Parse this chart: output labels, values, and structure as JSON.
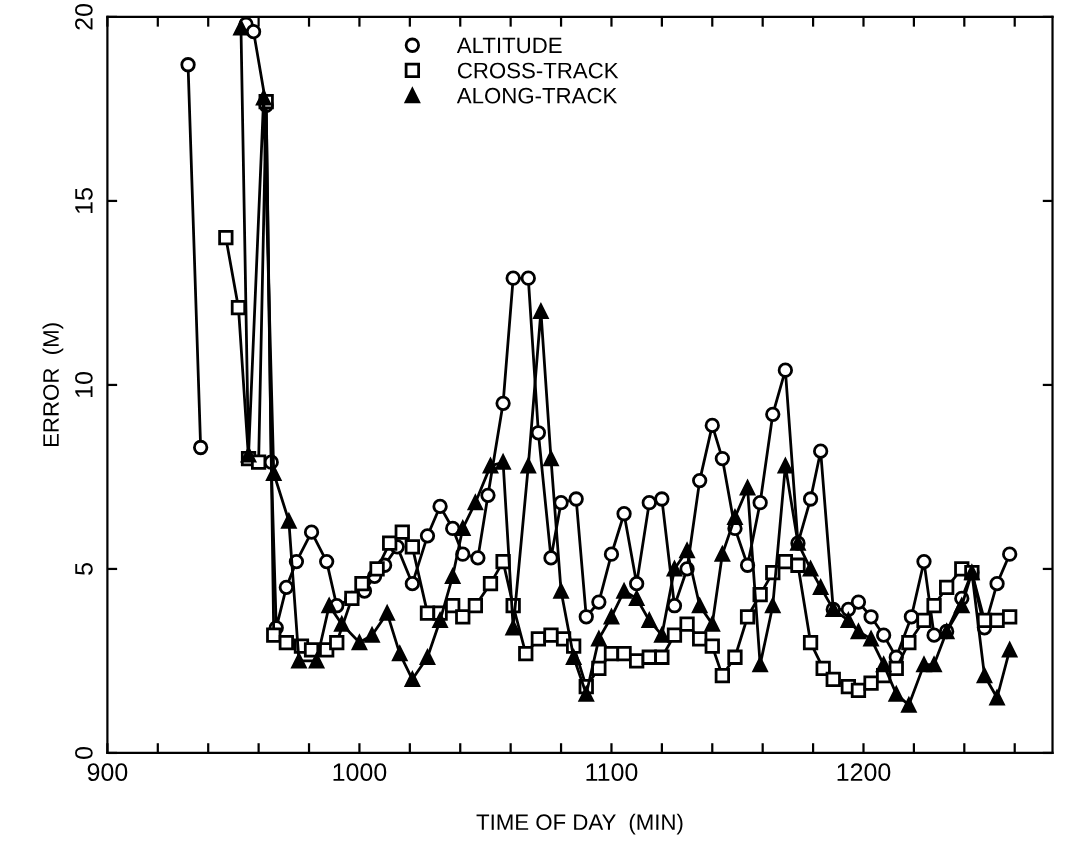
{
  "chart_data": {
    "type": "line",
    "xlabel": "TIME OF DAY  (MIN)",
    "ylabel": "ERROR  (M)",
    "xlim": [
      900,
      1275
    ],
    "ylim": [
      0,
      20
    ],
    "xticks": [
      900,
      {
        "value": 920,
        "label": null
      },
      {
        "value": 940,
        "label": null
      },
      {
        "value": 960,
        "label": null
      },
      {
        "value": 980,
        "label": null
      },
      1000,
      {
        "value": 1020,
        "label": null
      },
      {
        "value": 1040,
        "label": null
      },
      {
        "value": 1060,
        "label": null
      },
      {
        "value": 1080,
        "label": null
      },
      1100,
      {
        "value": 1120,
        "label": null
      },
      {
        "value": 1140,
        "label": null
      },
      {
        "value": 1160,
        "label": null
      },
      {
        "value": 1180,
        "label": null
      },
      1200,
      {
        "value": 1220,
        "label": null
      },
      {
        "value": 1240,
        "label": null
      },
      {
        "value": 1260,
        "label": null
      }
    ],
    "yticks": [
      0,
      5,
      10,
      15,
      20
    ],
    "grid": false,
    "legend": "top",
    "line_style": "solid",
    "series": [
      {
        "name": "ALTITUDE",
        "color": "#000000",
        "marker": "circle",
        "x": [
          932,
          937,
          945,
          955,
          958,
          963,
          965,
          967,
          971,
          975,
          981,
          987,
          991,
          997,
          1002,
          1006,
          1010,
          1015,
          1021,
          1027,
          1032,
          1037,
          1041,
          1047,
          1051,
          1057,
          1061,
          1067,
          1071,
          1076,
          1080,
          1086,
          1090,
          1095,
          1100,
          1105,
          1110,
          1115,
          1120,
          1125,
          1130,
          1135,
          1140,
          1144,
          1149,
          1154,
          1159,
          1164,
          1169,
          1174,
          1179,
          1183,
          1188,
          1194,
          1198,
          1203,
          1208,
          1213,
          1219,
          1224,
          1228,
          1233,
          1239,
          1243,
          1248,
          1253,
          1258
        ],
        "values": [
          18.7,
          8.3,
          null,
          19.8,
          19.6,
          17.6,
          7.9,
          3.4,
          4.5,
          5.2,
          6.0,
          5.2,
          4.0,
          4.2,
          4.4,
          4.8,
          5.1,
          5.6,
          4.6,
          5.9,
          6.7,
          6.1,
          5.4,
          5.3,
          7.0,
          9.5,
          12.9,
          12.9,
          8.7,
          5.3,
          6.8,
          6.9,
          3.7,
          4.1,
          5.4,
          6.5,
          4.6,
          6.8,
          6.9,
          4.0,
          5.0,
          7.4,
          8.9,
          8.0,
          6.1,
          5.1,
          6.8,
          9.2,
          10.4,
          5.7,
          6.9,
          8.2,
          3.9,
          3.9,
          4.1,
          3.7,
          3.2,
          2.6,
          3.7,
          5.2,
          3.2,
          3.3,
          4.2,
          4.9,
          3.4,
          4.6,
          5.4
        ]
      },
      {
        "name": "CROSS-TRACK",
        "color": "#000000",
        "marker": "square",
        "x": [
          947,
          952,
          956,
          960,
          963,
          966,
          971,
          977,
          981,
          987,
          991,
          997,
          1001,
          1007,
          1012,
          1017,
          1021,
          1027,
          1032,
          1037,
          1041,
          1046,
          1052,
          1057,
          1061,
          1066,
          1071,
          1076,
          1081,
          1085,
          1090,
          1095,
          1100,
          1105,
          1110,
          1115,
          1120,
          1125,
          1130,
          1135,
          1140,
          1144,
          1149,
          1154,
          1159,
          1164,
          1169,
          1174,
          1179,
          1184,
          1188,
          1194,
          1198,
          1203,
          1208,
          1213,
          1218,
          1224,
          1228,
          1233,
          1239,
          1243,
          1248,
          1253,
          1258
        ],
        "values": [
          14.0,
          12.1,
          8.0,
          7.9,
          17.7,
          3.2,
          3.0,
          2.9,
          2.8,
          2.8,
          3.0,
          4.2,
          4.6,
          5.0,
          5.7,
          6.0,
          5.6,
          3.8,
          3.8,
          4.0,
          3.7,
          4.0,
          4.6,
          5.2,
          4.0,
          2.7,
          3.1,
          3.2,
          3.1,
          2.9,
          1.8,
          2.3,
          2.7,
          2.7,
          2.5,
          2.6,
          2.6,
          3.2,
          3.5,
          3.1,
          2.9,
          2.1,
          2.6,
          3.7,
          4.3,
          4.9,
          5.2,
          5.1,
          3.0,
          2.3,
          2.0,
          1.8,
          1.7,
          1.9,
          2.1,
          2.3,
          3.0,
          3.6,
          4.0,
          4.5,
          5.0,
          4.9,
          3.6,
          3.6,
          3.7
        ]
      },
      {
        "name": "ALONG-TRACK",
        "color": "#000000",
        "marker": "triangle",
        "x": [
          953,
          956,
          962,
          966,
          972,
          976,
          983,
          988,
          993,
          1000,
          1005,
          1011,
          1016,
          1021,
          1027,
          1032,
          1037,
          1041,
          1046,
          1052,
          1057,
          1061,
          1067,
          1072,
          1076,
          1080,
          1085,
          1090,
          1095,
          1100,
          1105,
          1110,
          1115,
          1120,
          1125,
          1130,
          1135,
          1140,
          1144,
          1149,
          1154,
          1159,
          1164,
          1169,
          1174,
          1179,
          1183,
          1188,
          1194,
          1198,
          1203,
          1208,
          1213,
          1218,
          1224,
          1228,
          1233,
          1239,
          1243,
          1248,
          1253,
          1258
        ],
        "values": [
          19.7,
          8.1,
          17.8,
          7.6,
          6.3,
          2.5,
          2.5,
          4.0,
          3.5,
          3.0,
          3.2,
          3.8,
          2.7,
          2.0,
          2.6,
          3.6,
          4.8,
          6.1,
          6.8,
          7.8,
          7.9,
          3.4,
          7.8,
          12.0,
          8.0,
          4.4,
          2.6,
          1.6,
          3.1,
          3.7,
          4.4,
          4.2,
          3.6,
          3.2,
          5.0,
          5.5,
          4.0,
          3.5,
          5.4,
          6.4,
          7.2,
          2.4,
          4.0,
          7.8,
          5.7,
          5.0,
          4.5,
          3.9,
          3.6,
          3.3,
          3.1,
          2.4,
          1.6,
          1.3,
          2.4,
          2.4,
          3.3,
          4.0,
          4.9,
          2.1,
          1.5,
          2.8
        ]
      }
    ]
  }
}
